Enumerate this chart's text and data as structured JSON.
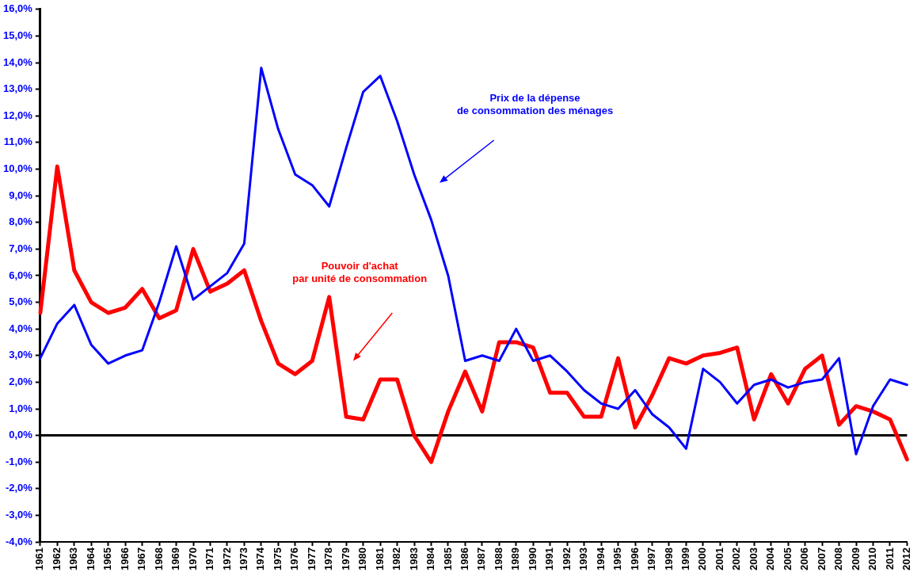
{
  "chart_data": {
    "type": "line",
    "categories": [
      "1961",
      "1962",
      "1963",
      "1964",
      "1965",
      "1966",
      "1967",
      "1968",
      "1969",
      "1970",
      "1971",
      "1972",
      "1973",
      "1974",
      "1975",
      "1976",
      "1977",
      "1978",
      "1979",
      "1980",
      "1981",
      "1982",
      "1983",
      "1984",
      "1985",
      "1986",
      "1987",
      "1988",
      "1989",
      "1990",
      "1991",
      "1992",
      "1993",
      "1994",
      "1995",
      "1996",
      "1997",
      "1998",
      "1999",
      "2000",
      "2001",
      "2002",
      "2003",
      "2004",
      "2005",
      "2006",
      "2007",
      "2008",
      "2009",
      "2010",
      "2011",
      "2012"
    ],
    "series": [
      {
        "name": "Prix de la dépense\nde consommation des ménages",
        "color": "#0000ff",
        "values": [
          2.9,
          4.2,
          4.9,
          3.4,
          2.7,
          3.0,
          3.2,
          5.0,
          7.1,
          5.1,
          5.6,
          6.1,
          7.2,
          13.8,
          11.5,
          9.8,
          9.4,
          8.6,
          10.8,
          12.9,
          13.5,
          11.8,
          9.8,
          8.1,
          6.0,
          2.8,
          3.0,
          2.8,
          4.0,
          2.8,
          3.0,
          2.4,
          1.7,
          1.2,
          1.0,
          1.7,
          0.8,
          0.3,
          -0.5,
          2.5,
          2.0,
          1.2,
          1.9,
          2.1,
          1.8,
          2.0,
          2.1,
          2.9,
          -0.7,
          1.1,
          2.1,
          1.9
        ]
      },
      {
        "name": "Pouvoir d'achat\npar unité de consommation",
        "color": "#ff0000",
        "values": [
          4.6,
          10.1,
          6.2,
          5.0,
          4.6,
          4.8,
          5.5,
          4.4,
          4.7,
          7.0,
          5.4,
          5.7,
          6.2,
          4.3,
          2.7,
          2.3,
          2.8,
          5.2,
          0.7,
          0.6,
          2.1,
          2.1,
          0.0,
          -1.0,
          0.9,
          2.4,
          0.9,
          3.5,
          3.5,
          3.3,
          1.6,
          1.6,
          0.7,
          0.7,
          2.9,
          0.3,
          1.5,
          2.9,
          2.7,
          3.0,
          3.1,
          3.3,
          0.6,
          2.3,
          1.2,
          2.5,
          3.0,
          0.4,
          1.1,
          0.9,
          0.6,
          -0.9
        ]
      }
    ],
    "ylim": [
      -4,
      16
    ],
    "yticks": [
      {
        "value": -4,
        "label": "-4,0%"
      },
      {
        "value": -3,
        "label": "-3,0%"
      },
      {
        "value": -2,
        "label": "-2,0%"
      },
      {
        "value": -1,
        "label": "-1,0%"
      },
      {
        "value": 0,
        "label": "0,0%"
      },
      {
        "value": 1,
        "label": "1,0%"
      },
      {
        "value": 2,
        "label": "2,0%"
      },
      {
        "value": 3,
        "label": "3,0%"
      },
      {
        "value": 4,
        "label": "4,0%"
      },
      {
        "value": 5,
        "label": "5,0%"
      },
      {
        "value": 6,
        "label": "6,0%"
      },
      {
        "value": 7,
        "label": "7,0%"
      },
      {
        "value": 8,
        "label": "8,0%"
      },
      {
        "value": 9,
        "label": "9,0%"
      },
      {
        "value": 10,
        "label": "10,0%"
      },
      {
        "value": 11,
        "label": "11,0%"
      },
      {
        "value": 12,
        "label": "12,0%"
      },
      {
        "value": 13,
        "label": "13,0%"
      },
      {
        "value": 14,
        "label": "14,0%"
      },
      {
        "value": 15,
        "label": "15,0%"
      },
      {
        "value": 16,
        "label": "16,0%"
      }
    ],
    "ref_lines": [
      {
        "axis": "y",
        "value": 0,
        "color": "#000000"
      }
    ],
    "grid": false,
    "legend": false,
    "marker": "none",
    "line_style": "solid"
  }
}
